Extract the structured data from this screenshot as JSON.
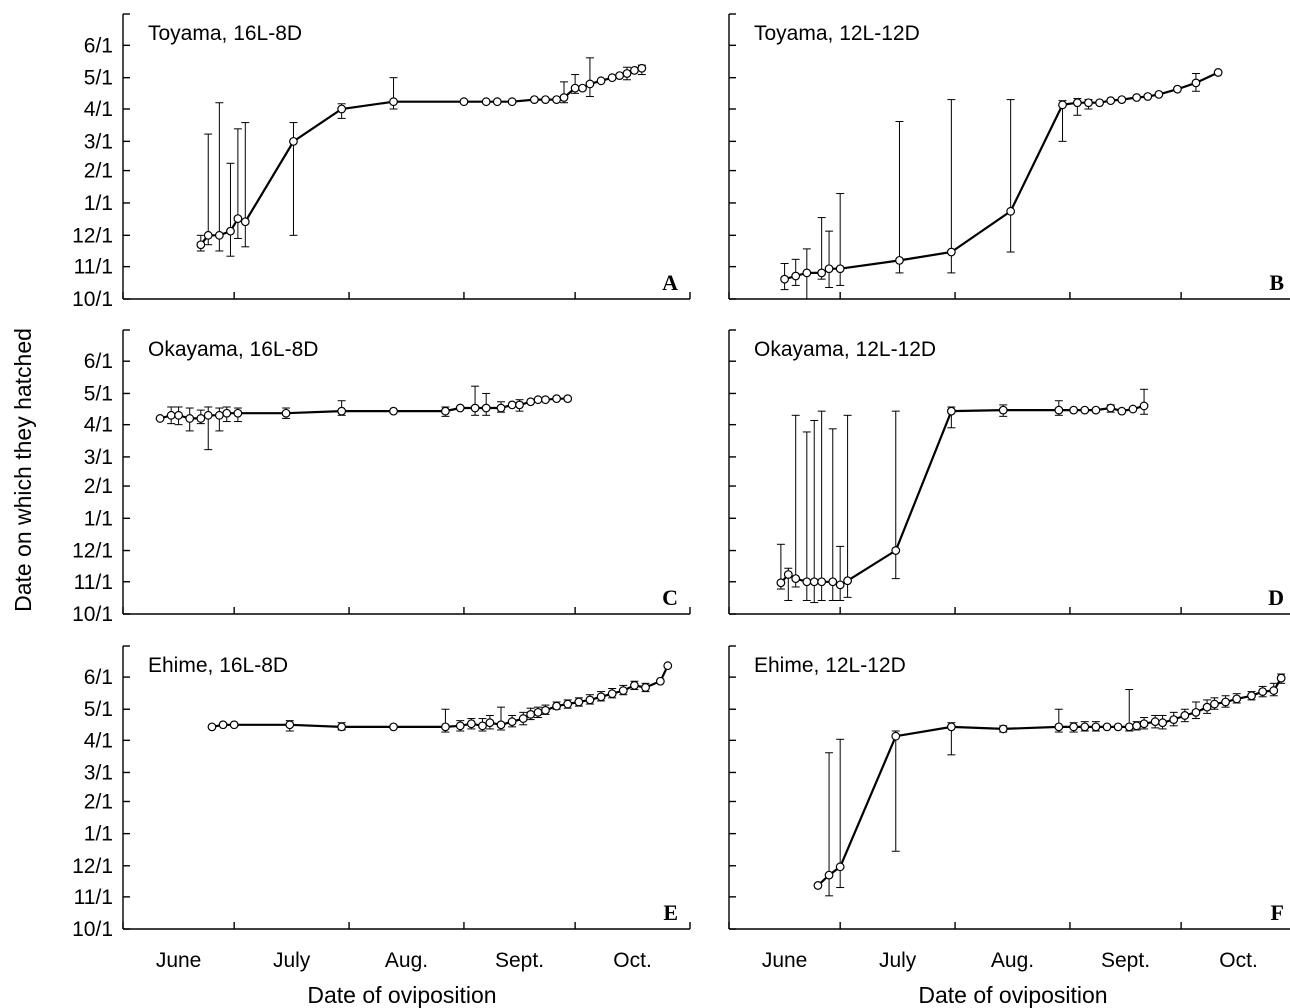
{
  "chart_data": {
    "type": "scatter",
    "ylabel": "Date on which they hatched",
    "xlabel": "Date of oviposition",
    "x_tick_labels": [
      "June",
      "July",
      "Aug.",
      "Sept.",
      "Oct."
    ],
    "y_tick_labels": [
      "10/1",
      "11/1",
      "12/1",
      "1/1",
      "2/1",
      "3/1",
      "4/1",
      "5/1",
      "6/1"
    ],
    "x_axis_range": [
      "06-01",
      "10-31"
    ],
    "y_axis_range": [
      "10-01",
      "07-01"
    ],
    "y_axis_note": "y values are hatching dates from Oct 1 to June of the next year",
    "error_bars": true,
    "line_connected": true,
    "marker": "open circle",
    "panels": [
      {
        "letter": "A",
        "title": "Toyama, 16L-8D",
        "points": [
          {
            "x": "06-22",
            "y": "11-22",
            "lo": "11-16",
            "hi": "12-01"
          },
          {
            "x": "06-24",
            "y": "12-01",
            "lo": "11-22",
            "hi": "03-08"
          },
          {
            "x": "06-27",
            "y": "12-01",
            "lo": "11-16",
            "hi": "04-07"
          },
          {
            "x": "06-30",
            "y": "12-05",
            "lo": "11-11",
            "hi": "02-08"
          },
          {
            "x": "07-02",
            "y": "12-17",
            "lo": "11-28",
            "hi": "03-13"
          },
          {
            "x": "07-04",
            "y": "12-14",
            "lo": "11-20",
            "hi": "03-19"
          },
          {
            "x": "07-17",
            "y": "03-01",
            "lo": "12-01",
            "hi": "03-19"
          },
          {
            "x": "07-30",
            "y": "04-01",
            "lo": "03-23",
            "hi": "04-06"
          },
          {
            "x": "08-13",
            "y": "04-08",
            "lo": "04-01",
            "hi": "05-01"
          },
          {
            "x": "09-01",
            "y": "04-08"
          },
          {
            "x": "09-07",
            "y": "04-08"
          },
          {
            "x": "09-10",
            "y": "04-08"
          },
          {
            "x": "09-14",
            "y": "04-08"
          },
          {
            "x": "09-20",
            "y": "04-10"
          },
          {
            "x": "09-23",
            "y": "04-10"
          },
          {
            "x": "09-26",
            "y": "04-10"
          },
          {
            "x": "09-28",
            "y": "04-12",
            "lo": "04-07",
            "hi": "04-27"
          },
          {
            "x": "10-01",
            "y": "04-21",
            "lo": "04-16",
            "hi": "05-04"
          },
          {
            "x": "10-03",
            "y": "04-21"
          },
          {
            "x": "10-05",
            "y": "04-25",
            "lo": "04-13",
            "hi": "05-20"
          },
          {
            "x": "10-08",
            "y": "04-28"
          },
          {
            "x": "10-11",
            "y": "05-01"
          },
          {
            "x": "10-13",
            "y": "05-03"
          },
          {
            "x": "10-15",
            "y": "05-05",
            "lo": "04-29",
            "hi": "05-11"
          },
          {
            "x": "10-17",
            "y": "05-08"
          },
          {
            "x": "10-19",
            "y": "05-10",
            "lo": "05-04",
            "hi": "05-13"
          }
        ]
      },
      {
        "letter": "B",
        "title": "Toyama, 12L-12D",
        "points": [
          {
            "x": "06-16",
            "y": "10-20",
            "lo": "10-10",
            "hi": "11-04"
          },
          {
            "x": "06-19",
            "y": "10-23",
            "lo": "10-14",
            "hi": "11-08"
          },
          {
            "x": "06-22",
            "y": "10-26",
            "lo": "10-01",
            "hi": "11-18"
          },
          {
            "x": "06-26",
            "y": "10-26",
            "lo": "10-20",
            "hi": "12-18"
          },
          {
            "x": "06-28",
            "y": "10-30",
            "lo": "10-12",
            "hi": "12-05"
          },
          {
            "x": "07-01",
            "y": "10-30",
            "lo": "10-14",
            "hi": "01-10"
          },
          {
            "x": "07-17",
            "y": "11-07",
            "lo": "10-26",
            "hi": "03-20"
          },
          {
            "x": "07-31",
            "y": "11-15",
            "lo": "10-26",
            "hi": "04-10"
          },
          {
            "x": "08-16",
            "y": "12-24",
            "lo": "11-15",
            "hi": "04-10"
          },
          {
            "x": "08-30",
            "y": "04-05",
            "lo": "03-01",
            "hi": "04-09"
          },
          {
            "x": "09-03",
            "y": "04-07",
            "lo": "03-26",
            "hi": "04-11"
          },
          {
            "x": "09-06",
            "y": "04-07",
            "lo": "04-01",
            "hi": "04-10"
          },
          {
            "x": "09-09",
            "y": "04-07"
          },
          {
            "x": "09-12",
            "y": "04-09"
          },
          {
            "x": "09-15",
            "y": "04-10"
          },
          {
            "x": "09-19",
            "y": "04-12"
          },
          {
            "x": "09-22",
            "y": "04-13"
          },
          {
            "x": "09-25",
            "y": "04-15"
          },
          {
            "x": "09-30",
            "y": "04-20"
          },
          {
            "x": "10-05",
            "y": "04-26",
            "lo": "04-18",
            "hi": "05-05"
          },
          {
            "x": "10-11",
            "y": "05-06"
          }
        ]
      },
      {
        "letter": "C",
        "title": "Okayama, 16L-8D",
        "points": [
          {
            "x": "06-11",
            "y": "04-07"
          },
          {
            "x": "06-14",
            "y": "04-10",
            "lo": "04-02",
            "hi": "04-18"
          },
          {
            "x": "06-16",
            "y": "04-10",
            "lo": "04-01",
            "hi": "04-18"
          },
          {
            "x": "06-19",
            "y": "04-07",
            "lo": "03-26",
            "hi": "04-17"
          },
          {
            "x": "06-22",
            "y": "04-07",
            "lo": "04-02",
            "hi": "04-15"
          },
          {
            "x": "06-24",
            "y": "04-10",
            "lo": "03-08",
            "hi": "04-18"
          },
          {
            "x": "06-27",
            "y": "04-10",
            "lo": "03-26",
            "hi": "04-17"
          },
          {
            "x": "06-29",
            "y": "04-12",
            "lo": "04-04",
            "hi": "04-18"
          },
          {
            "x": "07-02",
            "y": "04-12",
            "lo": "04-04",
            "hi": "04-17"
          },
          {
            "x": "07-15",
            "y": "04-12",
            "lo": "04-07",
            "hi": "04-17"
          },
          {
            "x": "07-30",
            "y": "04-14",
            "lo": "04-10",
            "hi": "04-24"
          },
          {
            "x": "08-13",
            "y": "04-14"
          },
          {
            "x": "08-27",
            "y": "04-14",
            "lo": "04-09",
            "hi": "04-18"
          },
          {
            "x": "08-31",
            "y": "04-17"
          },
          {
            "x": "09-04",
            "y": "04-17",
            "lo": "04-10",
            "hi": "05-08"
          },
          {
            "x": "09-07",
            "y": "04-17",
            "lo": "04-10",
            "hi": "05-01"
          },
          {
            "x": "09-11",
            "y": "04-17",
            "lo": "04-13",
            "hi": "04-23"
          },
          {
            "x": "09-14",
            "y": "04-20"
          },
          {
            "x": "09-16",
            "y": "04-20",
            "lo": "04-14",
            "hi": "04-25"
          },
          {
            "x": "09-19",
            "y": "04-23"
          },
          {
            "x": "09-21",
            "y": "04-25"
          },
          {
            "x": "09-23",
            "y": "04-25"
          },
          {
            "x": "09-26",
            "y": "04-26"
          },
          {
            "x": "09-29",
            "y": "04-26"
          }
        ]
      },
      {
        "letter": "D",
        "title": "Okayama, 12L-12D",
        "points": [
          {
            "x": "06-15",
            "y": "10-31",
            "lo": "10-25",
            "hi": "12-07"
          },
          {
            "x": "06-17",
            "y": "11-08",
            "lo": "10-14",
            "hi": "11-14"
          },
          {
            "x": "06-19",
            "y": "11-04",
            "lo": "10-27",
            "hi": "04-10"
          },
          {
            "x": "06-22",
            "y": "11-01",
            "lo": "10-14",
            "hi": "03-25"
          },
          {
            "x": "06-24",
            "y": "11-01",
            "lo": "10-12",
            "hi": "04-05"
          },
          {
            "x": "06-26",
            "y": "11-01",
            "lo": "10-14",
            "hi": "04-14"
          },
          {
            "x": "06-29",
            "y": "11-01",
            "lo": "10-14",
            "hi": "03-28"
          },
          {
            "x": "07-01",
            "y": "10-29",
            "lo": "10-14",
            "hi": "12-05"
          },
          {
            "x": "07-03",
            "y": "11-02",
            "lo": "10-17",
            "hi": "04-10"
          },
          {
            "x": "07-16",
            "y": "12-01",
            "lo": "11-04",
            "hi": "04-14"
          },
          {
            "x": "07-31",
            "y": "04-14",
            "lo": "03-29",
            "hi": "04-18"
          },
          {
            "x": "08-14",
            "y": "04-15",
            "lo": "04-09",
            "hi": "04-20"
          },
          {
            "x": "08-29",
            "y": "04-15",
            "lo": "04-10",
            "hi": "04-24"
          },
          {
            "x": "09-02",
            "y": "04-15"
          },
          {
            "x": "09-05",
            "y": "04-15"
          },
          {
            "x": "09-08",
            "y": "04-15"
          },
          {
            "x": "09-12",
            "y": "04-17",
            "lo": "04-13",
            "hi": "04-20"
          },
          {
            "x": "09-15",
            "y": "04-14"
          },
          {
            "x": "09-18",
            "y": "04-16"
          },
          {
            "x": "09-21",
            "y": "04-19",
            "lo": "04-11",
            "hi": "05-05"
          }
        ]
      },
      {
        "letter": "E",
        "title": "Ehime, 16L-8D",
        "points": [
          {
            "x": "06-25",
            "y": "04-14"
          },
          {
            "x": "06-28",
            "y": "04-16"
          },
          {
            "x": "07-01",
            "y": "04-16"
          },
          {
            "x": "07-16",
            "y": "04-16",
            "lo": "04-10",
            "hi": "04-20"
          },
          {
            "x": "07-30",
            "y": "04-14",
            "lo": "04-11",
            "hi": "04-18"
          },
          {
            "x": "08-13",
            "y": "04-14"
          },
          {
            "x": "08-27",
            "y": "04-14",
            "lo": "04-09",
            "hi": "05-01"
          },
          {
            "x": "08-31",
            "y": "04-15",
            "lo": "04-10",
            "hi": "04-20"
          },
          {
            "x": "09-03",
            "y": "04-17",
            "lo": "04-12",
            "hi": "04-22"
          },
          {
            "x": "09-06",
            "y": "04-15",
            "lo": "04-10",
            "hi": "04-22"
          },
          {
            "x": "09-08",
            "y": "04-18",
            "lo": "04-12",
            "hi": "04-25"
          },
          {
            "x": "09-11",
            "y": "04-16",
            "lo": "04-11",
            "hi": "05-03"
          },
          {
            "x": "09-14",
            "y": "04-19",
            "lo": "04-14",
            "hi": "04-25"
          },
          {
            "x": "09-17",
            "y": "04-22",
            "lo": "04-16",
            "hi": "04-28"
          },
          {
            "x": "09-19",
            "y": "04-26",
            "lo": "04-21",
            "hi": "05-02"
          },
          {
            "x": "09-21",
            "y": "04-28",
            "lo": "04-23",
            "hi": "05-03"
          },
          {
            "x": "09-23",
            "y": "04-30",
            "lo": "04-26",
            "hi": "05-05"
          },
          {
            "x": "09-26",
            "y": "05-04",
            "lo": "05-01",
            "hi": "05-08"
          },
          {
            "x": "09-29",
            "y": "05-06",
            "lo": "05-02",
            "hi": "05-10"
          },
          {
            "x": "10-02",
            "y": "05-08",
            "lo": "05-04",
            "hi": "05-12"
          },
          {
            "x": "10-05",
            "y": "05-10",
            "lo": "05-06",
            "hi": "05-15"
          },
          {
            "x": "10-08",
            "y": "05-13",
            "lo": "05-09",
            "hi": "05-18"
          },
          {
            "x": "10-11",
            "y": "05-16",
            "lo": "05-12",
            "hi": "05-21"
          },
          {
            "x": "10-14",
            "y": "05-19",
            "lo": "05-15",
            "hi": "05-24"
          },
          {
            "x": "10-17",
            "y": "05-24",
            "lo": "05-20",
            "hi": "05-28"
          },
          {
            "x": "10-20",
            "y": "05-22",
            "lo": "05-18",
            "hi": "05-26"
          },
          {
            "x": "10-24",
            "y": "05-28"
          },
          {
            "x": "10-26",
            "y": "06-12"
          }
        ]
      },
      {
        "letter": "F",
        "title": "Ehime, 12L-12D",
        "points": [
          {
            "x": "06-25",
            "y": "11-12"
          },
          {
            "x": "06-28",
            "y": "11-22",
            "lo": "11-02",
            "hi": "03-20"
          },
          {
            "x": "07-01",
            "y": "11-30",
            "lo": "11-10",
            "hi": "04-02"
          },
          {
            "x": "07-16",
            "y": "04-05",
            "lo": "12-15",
            "hi": "04-10"
          },
          {
            "x": "07-31",
            "y": "04-14",
            "lo": "03-18",
            "hi": "04-18"
          },
          {
            "x": "08-14",
            "y": "04-12",
            "lo": "04-09",
            "hi": "04-15"
          },
          {
            "x": "08-29",
            "y": "04-14",
            "lo": "04-09",
            "hi": "05-01"
          },
          {
            "x": "09-02",
            "y": "04-14",
            "lo": "04-09",
            "hi": "04-18"
          },
          {
            "x": "09-05",
            "y": "04-14",
            "lo": "04-10",
            "hi": "04-19"
          },
          {
            "x": "09-08",
            "y": "04-14",
            "lo": "04-10",
            "hi": "04-19"
          },
          {
            "x": "09-11",
            "y": "04-14"
          },
          {
            "x": "09-14",
            "y": "04-14"
          },
          {
            "x": "09-17",
            "y": "04-14",
            "lo": "04-10",
            "hi": "05-20"
          },
          {
            "x": "09-19",
            "y": "04-15",
            "lo": "04-11",
            "hi": "04-19"
          },
          {
            "x": "09-21",
            "y": "04-17",
            "lo": "04-12",
            "hi": "04-23"
          },
          {
            "x": "09-24",
            "y": "04-19",
            "lo": "04-13",
            "hi": "04-25"
          },
          {
            "x": "09-26",
            "y": "04-18",
            "lo": "04-12",
            "hi": "04-25"
          },
          {
            "x": "09-29",
            "y": "04-21",
            "lo": "04-15",
            "hi": "04-28"
          },
          {
            "x": "10-02",
            "y": "04-25",
            "lo": "04-19",
            "hi": "05-01"
          },
          {
            "x": "10-05",
            "y": "04-28",
            "lo": "04-22",
            "hi": "05-08"
          },
          {
            "x": "10-08",
            "y": "05-03",
            "lo": "04-27",
            "hi": "05-10"
          },
          {
            "x": "10-10",
            "y": "05-06",
            "lo": "05-01",
            "hi": "05-12"
          },
          {
            "x": "10-13",
            "y": "05-08",
            "lo": "05-03",
            "hi": "05-14"
          },
          {
            "x": "10-16",
            "y": "05-11",
            "lo": "05-07",
            "hi": "05-16"
          },
          {
            "x": "10-20",
            "y": "05-14",
            "lo": "05-10",
            "hi": "05-18"
          },
          {
            "x": "10-23",
            "y": "05-18",
            "lo": "05-13",
            "hi": "05-23"
          },
          {
            "x": "10-26",
            "y": "05-19",
            "lo": "05-14",
            "hi": "05-26"
          },
          {
            "x": "10-28",
            "y": "05-31",
            "lo": "05-26",
            "hi": "06-04"
          }
        ]
      }
    ]
  }
}
